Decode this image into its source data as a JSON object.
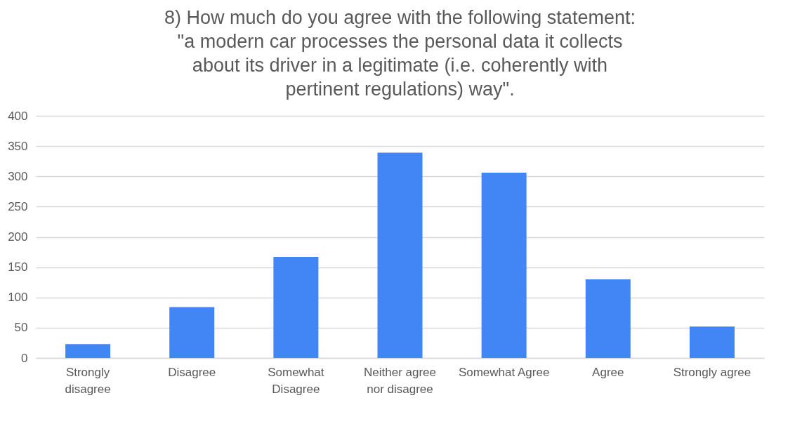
{
  "chart_data": {
    "type": "bar",
    "title": "8) How much do you agree with the following statement: \"a modern car processes the personal data it collects about its driver in a legitimate (i.e. coherently with pertinent regulations) way\".",
    "categories": [
      "Strongly disagree",
      "Disagree",
      "Somewhat Disagree",
      "Neither agree nor disagree",
      "Somewhat Agree",
      "Agree",
      "Strongly agree"
    ],
    "values": [
      23,
      84,
      167,
      339,
      306,
      130,
      52
    ],
    "color": "#4285f4",
    "ylim": [
      0,
      400
    ],
    "yticks": [
      0,
      50,
      100,
      150,
      200,
      250,
      300,
      350,
      400
    ],
    "grid": "y"
  }
}
